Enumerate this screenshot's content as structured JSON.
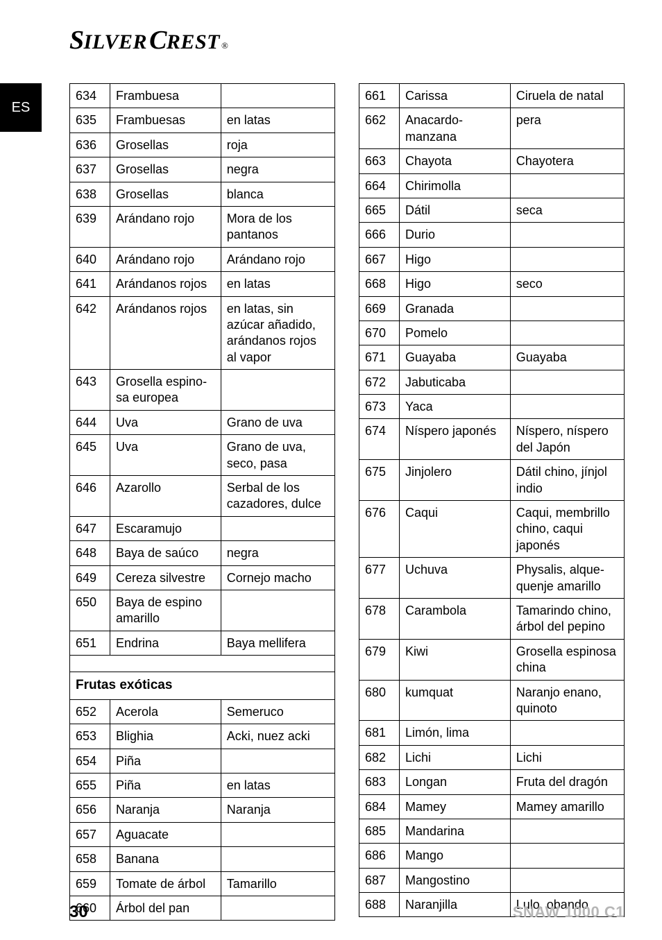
{
  "brand": {
    "s1": "S",
    "s2": "ILVER",
    "s3": "C",
    "s4": "REST",
    "reg": "®"
  },
  "lang_tab": "ES",
  "footer": {
    "page": "30",
    "model": "SNAW 1000 C1"
  },
  "left": {
    "rows": [
      {
        "n": "634",
        "a": "Frambuesa",
        "b": ""
      },
      {
        "n": "635",
        "a": "Frambuesas",
        "b": "en latas"
      },
      {
        "n": "636",
        "a": "Grosellas",
        "b": "roja"
      },
      {
        "n": "637",
        "a": "Grosellas",
        "b": "negra"
      },
      {
        "n": "638",
        "a": "Grosellas",
        "b": "blanca"
      },
      {
        "n": "639",
        "a": "Arándano rojo",
        "b": "Mora de los pantanos"
      },
      {
        "n": "640",
        "a": "Arándano rojo",
        "b": "Arándano rojo"
      },
      {
        "n": "641",
        "a": "Arándanos rojos",
        "b": "en latas"
      },
      {
        "n": "642",
        "a": "Arándanos rojos",
        "b": "en latas, sin azúcar añadido, arándanos rojos al vapor"
      },
      {
        "n": "643",
        "a": "Grosella espino­sa europea",
        "b": ""
      },
      {
        "n": "644",
        "a": "Uva",
        "b": "Grano de uva"
      },
      {
        "n": "645",
        "a": "Uva",
        "b": "Grano de uva, seco, pasa"
      },
      {
        "n": "646",
        "a": "Azarollo",
        "b": "Serbal de los cazadores, dulce"
      },
      {
        "n": "647",
        "a": "Escaramujo",
        "b": ""
      },
      {
        "n": "648",
        "a": "Baya de saúco",
        "b": "negra"
      },
      {
        "n": "649",
        "a": "Cereza silvestre",
        "b": "Cornejo macho"
      },
      {
        "n": "650",
        "a": "Baya de espino amarillo",
        "b": ""
      },
      {
        "n": "651",
        "a": "Endrina",
        "b": "Baya mellifera"
      }
    ],
    "section": "Frutas exóticas",
    "rows2": [
      {
        "n": "652",
        "a": "Acerola",
        "b": "Semeruco"
      },
      {
        "n": "653",
        "a": "Blighia",
        "b": "Acki, nuez acki"
      },
      {
        "n": "654",
        "a": "Piña",
        "b": ""
      },
      {
        "n": "655",
        "a": "Piña",
        "b": "en latas"
      },
      {
        "n": "656",
        "a": "Naranja",
        "b": "Naranja"
      },
      {
        "n": "657",
        "a": "Aguacate",
        "b": ""
      },
      {
        "n": "658",
        "a": "Banana",
        "b": ""
      },
      {
        "n": "659",
        "a": "Tomate de árbol",
        "b": "Tamarillo"
      },
      {
        "n": "660",
        "a": "Árbol del pan",
        "b": ""
      }
    ]
  },
  "right": {
    "rows": [
      {
        "n": "661",
        "a": "Carissa",
        "b": "Ciruela de natal"
      },
      {
        "n": "662",
        "a": "Anacardo-manzana",
        "b": "pera"
      },
      {
        "n": "663",
        "a": "Chayota",
        "b": "Chayotera"
      },
      {
        "n": "664",
        "a": "Chirimolla",
        "b": ""
      },
      {
        "n": "665",
        "a": "Dátil",
        "b": "seca"
      },
      {
        "n": "666",
        "a": "Durio",
        "b": ""
      },
      {
        "n": "667",
        "a": "Higo",
        "b": ""
      },
      {
        "n": "668",
        "a": "Higo",
        "b": "seco"
      },
      {
        "n": "669",
        "a": "Granada",
        "b": ""
      },
      {
        "n": "670",
        "a": "Pomelo",
        "b": ""
      },
      {
        "n": "671",
        "a": "Guayaba",
        "b": "Guayaba"
      },
      {
        "n": "672",
        "a": "Jabuticaba",
        "b": ""
      },
      {
        "n": "673",
        "a": "Yaca",
        "b": ""
      },
      {
        "n": "674",
        "a": "Níspero japonés",
        "b": "Níspero, níspero del Japón"
      },
      {
        "n": "675",
        "a": "Jinjolero",
        "b": "Dátil chino, jínjol indio"
      },
      {
        "n": "676",
        "a": "Caqui",
        "b": "Caqui, membrillo chino, caqui japonés"
      },
      {
        "n": "677",
        "a": "Uchuva",
        "b": "Physalis, alque­quenje amarillo"
      },
      {
        "n": "678",
        "a": "Carambola",
        "b": "Tamarindo chino, árbol del pepino"
      },
      {
        "n": "679",
        "a": "Kiwi",
        "b": "Grosella espinosa china"
      },
      {
        "n": "680",
        "a": "kumquat",
        "b": "Naranjo enano, quinoto"
      },
      {
        "n": "681",
        "a": "Limón, lima",
        "b": ""
      },
      {
        "n": "682",
        "a": "Lichi",
        "b": "Lichi"
      },
      {
        "n": "683",
        "a": "Longan",
        "b": "Fruta del dragón"
      },
      {
        "n": "684",
        "a": "Mamey",
        "b": "Mamey amarillo"
      },
      {
        "n": "685",
        "a": "Mandarina",
        "b": ""
      },
      {
        "n": "686",
        "a": "Mango",
        "b": ""
      },
      {
        "n": "687",
        "a": "Mangostino",
        "b": ""
      },
      {
        "n": "688",
        "a": "Naranjilla",
        "b": "Lulo, obando"
      }
    ]
  }
}
